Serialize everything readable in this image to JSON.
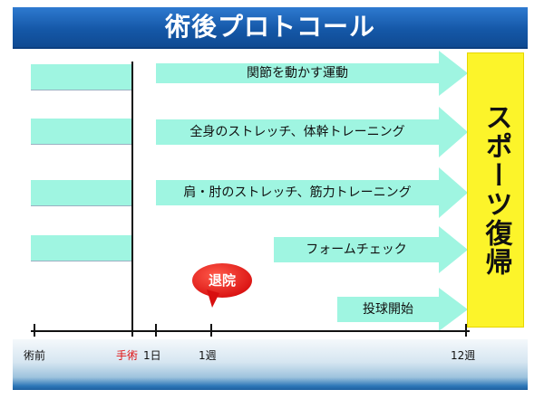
{
  "title": "術後プロトコール",
  "arrows": [
    {
      "label": "関節を動かす運動"
    },
    {
      "label": "全身のストレッチ、体幹トレーニング"
    },
    {
      "label": "肩・肘のストレッチ、筋力トレーニング"
    },
    {
      "label": "フォームチェック"
    },
    {
      "label": "投球開始"
    }
  ],
  "goal": "スポーツ復帰",
  "discharge": "退院",
  "timeline": {
    "labels": [
      {
        "text": "術前"
      },
      {
        "text": "手術"
      },
      {
        "text": "1日"
      },
      {
        "text": "1週"
      },
      {
        "text": "12週"
      }
    ]
  },
  "colors": {
    "title_bg": "#1a62b5",
    "bar_fill": "#9ff5e1",
    "goal_fill": "#fcf42a",
    "discharge_fill": "#e81e1e",
    "surgery_label": "#e01010"
  }
}
